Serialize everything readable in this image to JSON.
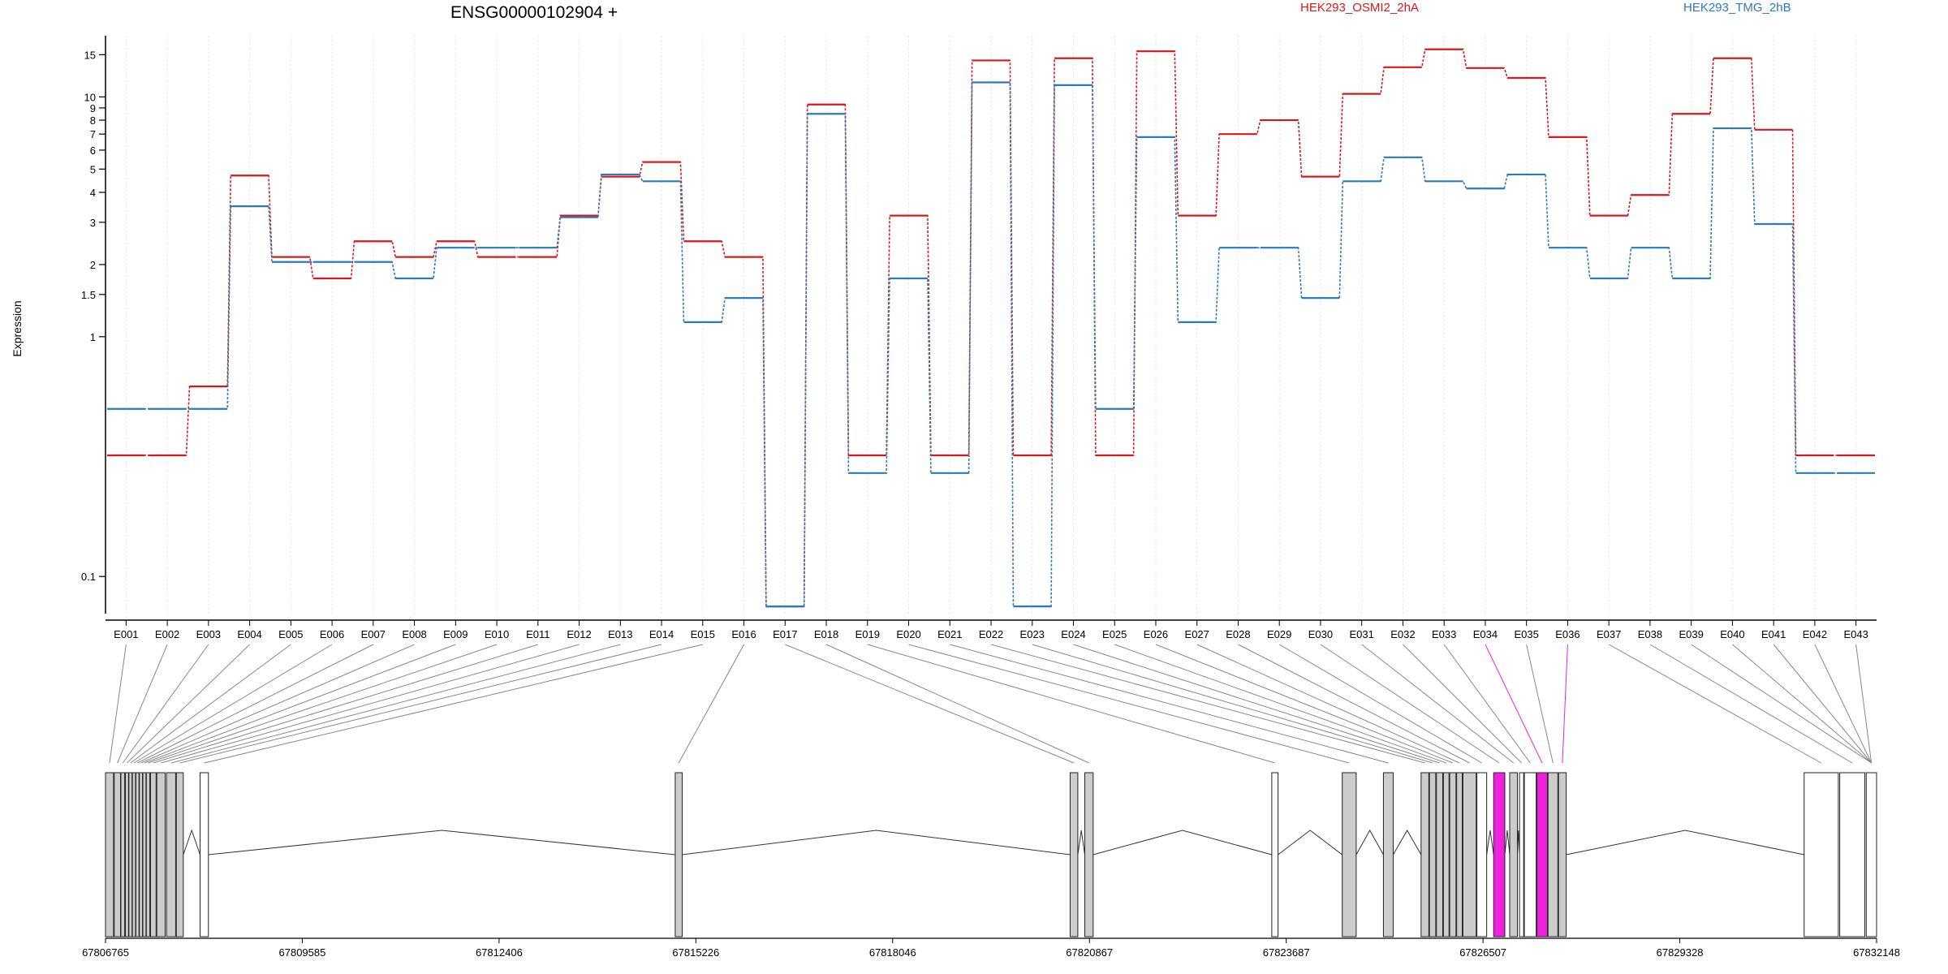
{
  "chart_data": {
    "type": "line",
    "title": "ENSG00000102904 +",
    "ylabel": "Expression",
    "xlabel": "",
    "y_scale": "log",
    "ylim": [
      0.07,
      18
    ],
    "y_ticks": [
      0.1,
      1,
      1.5,
      2,
      3,
      4,
      5,
      6,
      7,
      8,
      9,
      10,
      15
    ],
    "y_tick_labels": [
      "0.1",
      "1",
      "1.5",
      "2",
      "3",
      "4",
      "5",
      "6",
      "7",
      "8",
      "9",
      "10",
      "15"
    ],
    "grid": "vertical dotted lines at each exon bin",
    "legend_placement": "top, horizontal",
    "categories": [
      "E001",
      "E002",
      "E003",
      "E004",
      "E005",
      "E006",
      "E007",
      "E008",
      "E009",
      "E010",
      "E011",
      "E012",
      "E013",
      "E014",
      "E015",
      "E016",
      "E017",
      "E018",
      "E019",
      "E020",
      "E021",
      "E022",
      "E023",
      "E024",
      "E025",
      "E026",
      "E027",
      "E028",
      "E029",
      "E030",
      "E031",
      "E032",
      "E033",
      "E034",
      "E035",
      "E036",
      "E037",
      "E038",
      "E039",
      "E040",
      "E041",
      "E042",
      "E043"
    ],
    "series": [
      {
        "name": "HEK293_OSMI2_2hA",
        "color": "#d7191c",
        "values": [
          0.32,
          0.32,
          0.62,
          4.7,
          2.15,
          1.75,
          2.5,
          2.15,
          2.5,
          2.15,
          2.15,
          3.2,
          4.65,
          5.35,
          2.5,
          2.15,
          0.075,
          9.3,
          0.32,
          3.2,
          0.32,
          14.2,
          0.32,
          14.5,
          0.32,
          15.5,
          3.2,
          7.0,
          8.0,
          4.65,
          10.3,
          13.3,
          15.8,
          13.2,
          12.0,
          6.8,
          3.2,
          3.9,
          8.5,
          14.5,
          7.3,
          0.32,
          0.32
        ]
      },
      {
        "name": "HEK293_TMG_2hB",
        "color": "#2c7bb6",
        "values": [
          0.5,
          0.5,
          0.5,
          3.5,
          2.05,
          2.05,
          2.05,
          1.75,
          2.35,
          2.35,
          2.35,
          3.15,
          4.75,
          4.45,
          1.15,
          1.45,
          0.075,
          8.5,
          0.27,
          1.75,
          0.27,
          11.5,
          0.075,
          11.2,
          0.5,
          6.8,
          1.15,
          2.35,
          2.35,
          1.45,
          4.45,
          5.6,
          4.45,
          4.15,
          4.75,
          2.35,
          1.75,
          2.35,
          1.75,
          7.4,
          2.95,
          0.27,
          0.27
        ]
      }
    ],
    "genomic_coordinates": [
      "67806765",
      "67809585",
      "67812406",
      "67815226",
      "67818046",
      "67820867",
      "67823687",
      "67826507",
      "67829328",
      "67832148"
    ],
    "highlighted_exons": [
      "E034",
      "E036"
    ],
    "highlight_color": "#ee22dd",
    "exon_fill_color": "#cccccc"
  }
}
